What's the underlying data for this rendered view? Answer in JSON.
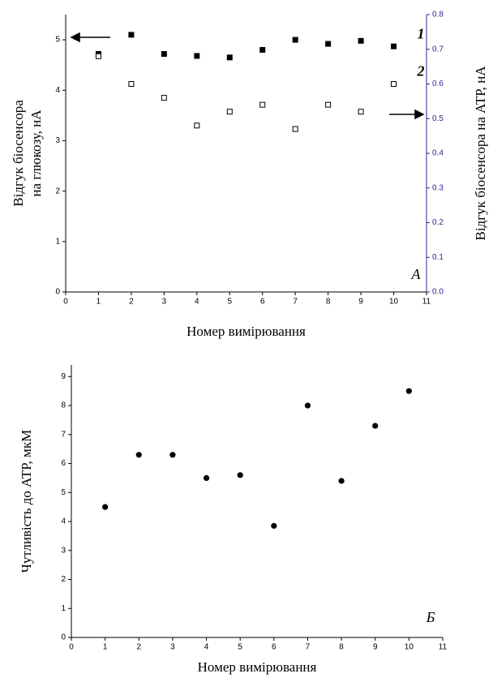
{
  "chart_data": [
    {
      "type": "scatter",
      "xlabel": "Номер вимірювання",
      "ylabel": [
        "Відгук біосенсора",
        "на глюкозу, нА"
      ],
      "y2label": "Відгук біосенсора на АТР, нА",
      "annotation": "A",
      "x": [
        1,
        2,
        3,
        4,
        5,
        6,
        7,
        8,
        9,
        10
      ],
      "xlim": [
        0,
        11
      ],
      "xticks": [
        0,
        1,
        2,
        3,
        4,
        5,
        6,
        7,
        8,
        9,
        10,
        11
      ],
      "ylim": [
        0,
        5.5
      ],
      "yticks": [
        0,
        1,
        2,
        3,
        4,
        5
      ],
      "y2lim": [
        0,
        0.8
      ],
      "y2ticks": [
        {
          "value": 0,
          "label": "0.0"
        },
        0.1,
        0.2,
        0.3,
        0.4,
        0.5,
        0.6,
        0.7,
        0.8
      ],
      "y2color": "#2b2b8c",
      "series": [
        {
          "name": "1",
          "color": "#000000",
          "marker": "filled",
          "values": [
            4.72,
            5.1,
            4.72,
            4.68,
            4.65,
            4.8,
            5.0,
            4.92,
            4.98,
            4.87
          ]
        },
        {
          "name": "2",
          "color": "#000000",
          "marker": "open",
          "axis": "y2",
          "values": [
            0.68,
            0.6,
            0.56,
            0.48,
            0.52,
            0.54,
            0.47,
            0.54,
            0.52,
            0.6
          ]
        }
      ]
    },
    {
      "type": "scatter",
      "xlabel": "Номер вимірювання",
      "ylabel": [
        "Чутливість до АТР, мкМ"
      ],
      "annotation": "Б",
      "x": [
        1,
        2,
        3,
        4,
        5,
        6,
        7,
        8,
        9,
        10
      ],
      "xlim": [
        0,
        11
      ],
      "xticks": [
        0,
        1,
        2,
        3,
        4,
        5,
        6,
        7,
        8,
        9,
        10,
        11
      ],
      "ylim": [
        0,
        9.4
      ],
      "yticks": [
        0,
        1,
        2,
        3,
        4,
        5,
        6,
        7,
        8,
        9
      ],
      "series": [
        {
          "color": "#000000",
          "marker": "circle",
          "values": [
            4.5,
            6.3,
            6.3,
            5.5,
            5.6,
            3.85,
            8.0,
            5.4,
            7.3,
            8.5
          ]
        }
      ]
    }
  ]
}
